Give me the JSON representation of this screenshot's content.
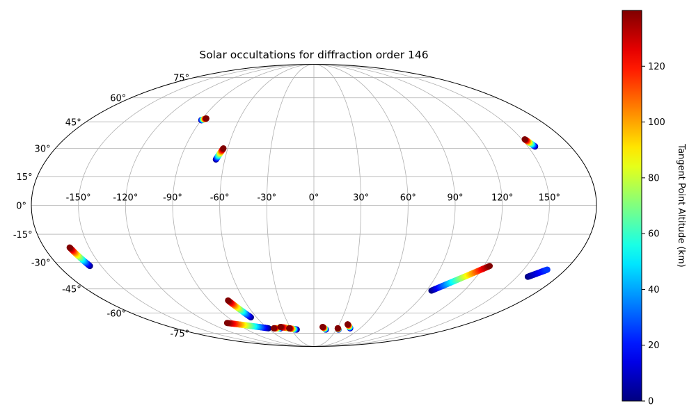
{
  "chart_data": {
    "type": "scatter",
    "projection": "mollweide",
    "title": "Solar occultations for diffraction order 146",
    "lon_ticks": [
      -150,
      -120,
      -90,
      -60,
      -30,
      0,
      30,
      60,
      90,
      120,
      150
    ],
    "lon_tick_labels": [
      "-150°",
      "-120°",
      "-90°",
      "-60°",
      "-30°",
      "0°",
      "30°",
      "60°",
      "90°",
      "120°",
      "150°"
    ],
    "lat_ticks": [
      75,
      60,
      45,
      30,
      15,
      0,
      -15,
      -30,
      -45,
      -60,
      -75
    ],
    "lat_tick_labels": [
      "75°",
      "60°",
      "45°",
      "30°",
      "15°",
      "0°",
      "-15°",
      "-30°",
      "-45°",
      "-60°",
      "-75°"
    ],
    "grid": true,
    "colorbar": {
      "label": "Tangent Point Altitude (km)",
      "range": [
        0,
        140
      ],
      "ticks": [
        0,
        20,
        40,
        60,
        80,
        100,
        120
      ],
      "tick_labels": [
        "0",
        "20",
        "40",
        "60",
        "80",
        "100",
        "120"
      ],
      "colormap": "jet"
    },
    "occultations": [
      {
        "lon_start": -90,
        "lat_start": 46,
        "alt_start": 0,
        "lon_end": -87,
        "lat_end": 47,
        "alt_end": 140
      },
      {
        "lon_start": -66,
        "lat_start": 24,
        "alt_start": 0,
        "lon_end": -63,
        "lat_end": 30,
        "alt_end": 140
      },
      {
        "lon_start": 155,
        "lat_start": 31,
        "alt_start": 0,
        "lon_end": 152,
        "lat_end": 35,
        "alt_end": 140
      },
      {
        "lon_start": -158,
        "lat_start": -32,
        "alt_start": 0,
        "lon_end": -163,
        "lat_end": -22,
        "alt_end": 140
      },
      {
        "lon_start": -66,
        "lat_start": -63,
        "alt_start": 0,
        "lon_end": -74,
        "lat_end": -52,
        "alt_end": 140
      },
      {
        "lon_start": -59,
        "lat_start": -71,
        "alt_start": 0,
        "lon_end": -100,
        "lat_end": -67,
        "alt_end": 140
      },
      {
        "lon_start": -43,
        "lat_start": -71,
        "alt_start": 0,
        "lon_end": -52,
        "lat_end": -71,
        "alt_end": 140
      },
      {
        "lon_start": -23,
        "lat_start": -72,
        "alt_start": 0,
        "lon_end": -42,
        "lat_end": -70,
        "alt_end": 140
      },
      {
        "lon_start": -24,
        "lat_start": -72,
        "alt_start": 0,
        "lon_end": -32,
        "lat_end": -71,
        "alt_end": 140
      },
      {
        "lon_start": 16,
        "lat_start": -72,
        "alt_start": 0,
        "lon_end": 11,
        "lat_end": -70,
        "alt_end": 140
      },
      {
        "lon_start": 33,
        "lat_start": -72,
        "alt_start": 0,
        "lon_end": 31,
        "lat_end": -71,
        "alt_end": 140
      },
      {
        "lon_start": 47,
        "lat_start": -71,
        "alt_start": 0,
        "lon_end": 40,
        "lat_end": -68,
        "alt_end": 140
      },
      {
        "lon_start": 94,
        "lat_start": -46,
        "alt_start": 0,
        "lon_end": 124,
        "lat_end": -32,
        "alt_end": 140
      },
      {
        "lon_start": 158,
        "lat_start": -38,
        "alt_start": 0,
        "lon_end": 167,
        "lat_end": -34,
        "alt_end": 25
      }
    ]
  }
}
